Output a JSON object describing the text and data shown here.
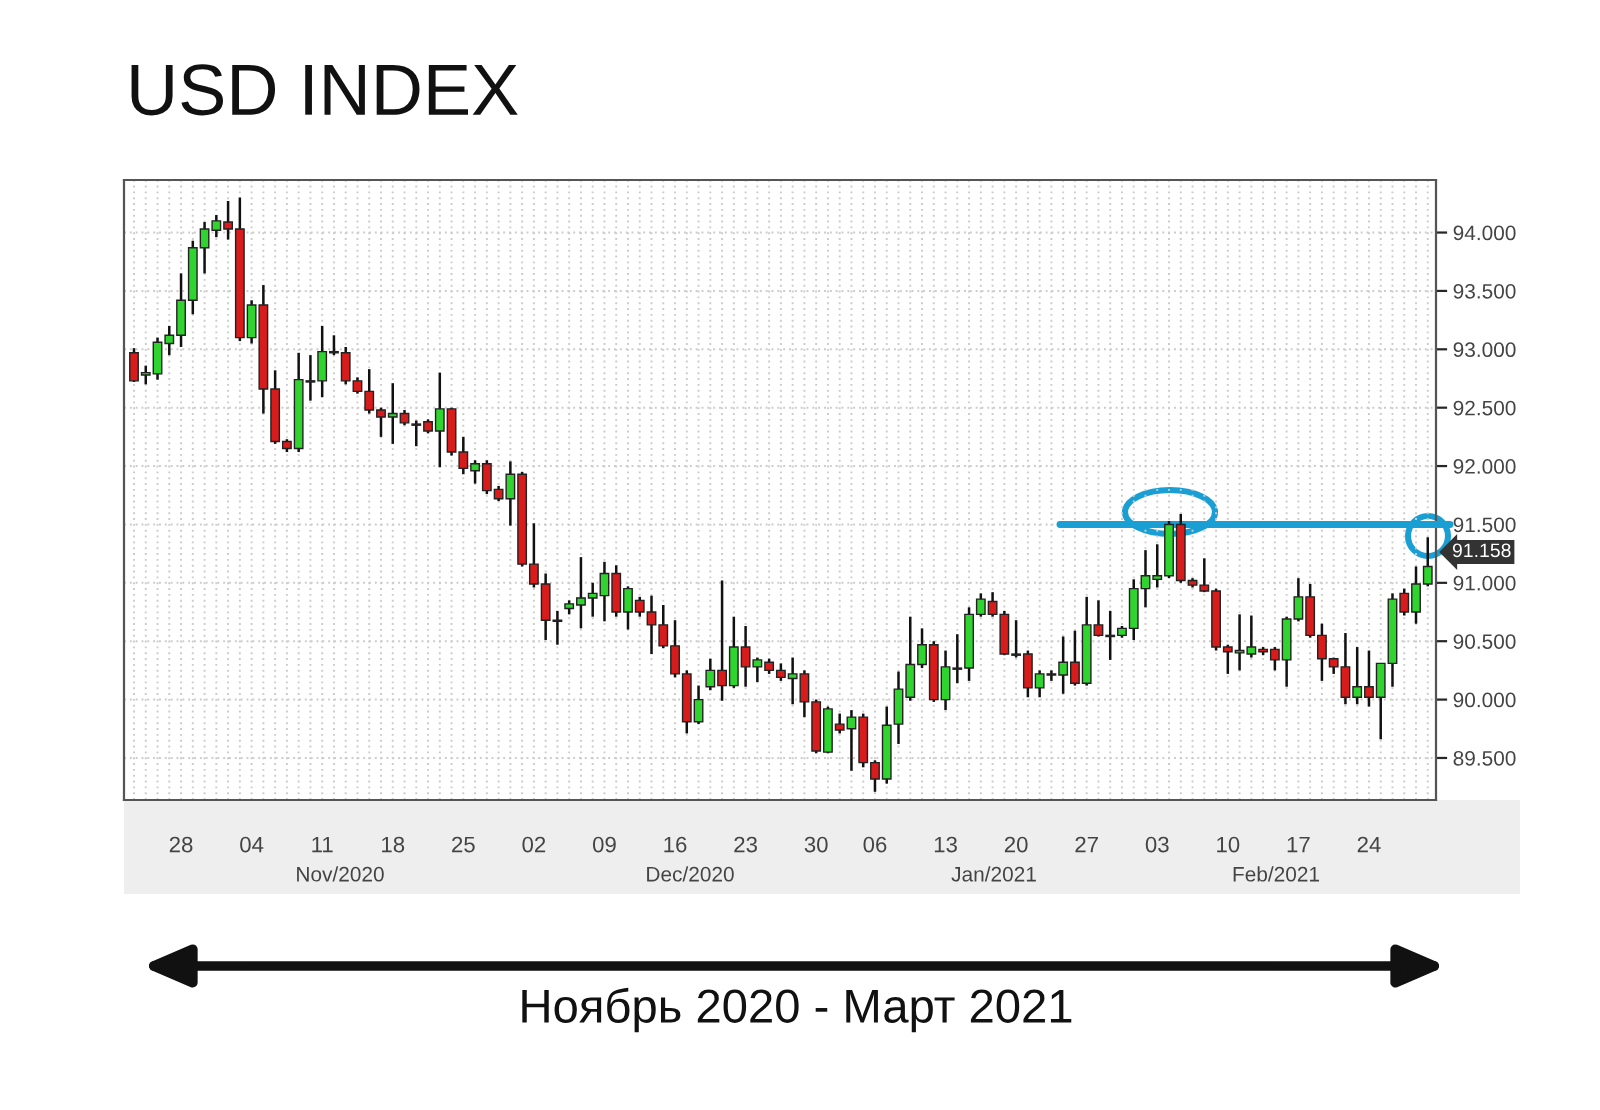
{
  "chart_data": {
    "type": "candlestick",
    "title": "USD INDEX",
    "categories": [
      null,
      null,
      null,
      null,
      "28",
      null,
      null,
      null,
      null,
      null,
      "04",
      null,
      null,
      null,
      null,
      null,
      "11",
      null,
      null,
      null,
      null,
      null,
      "18",
      null,
      null,
      null,
      null,
      null,
      "25",
      null,
      null,
      null,
      null,
      null,
      "02",
      null,
      null,
      null,
      null,
      null,
      "09",
      null,
      null,
      null,
      null,
      null,
      "16",
      null,
      null,
      null,
      null,
      null,
      "23",
      null,
      null,
      null,
      null,
      null,
      "30",
      null,
      null,
      null,
      null,
      "06",
      null,
      null,
      null,
      null,
      null,
      "13",
      null,
      null,
      null,
      null,
      null,
      "20",
      null,
      null,
      null,
      null,
      null,
      "27",
      null,
      null,
      null,
      null,
      null,
      "03",
      null,
      null,
      null,
      null,
      null,
      "10",
      null,
      null,
      null,
      null,
      null,
      "17",
      null,
      null,
      null,
      null,
      null,
      "24",
      null,
      null,
      null,
      null,
      null
    ],
    "ohlc": [
      [
        92.97,
        93.01,
        92.72,
        92.73
      ],
      [
        92.78,
        92.86,
        92.7,
        92.8
      ],
      [
        92.79,
        93.1,
        92.74,
        93.06
      ],
      [
        93.05,
        93.2,
        92.95,
        93.12
      ],
      [
        93.12,
        93.65,
        93.02,
        93.42
      ],
      [
        93.42,
        93.93,
        93.3,
        93.87
      ],
      [
        93.87,
        94.09,
        93.65,
        94.03
      ],
      [
        94.02,
        94.15,
        93.96,
        94.1
      ],
      [
        94.09,
        94.27,
        93.94,
        94.03
      ],
      [
        94.03,
        94.3,
        93.07,
        93.1
      ],
      [
        93.1,
        93.42,
        93.05,
        93.38
      ],
      [
        93.38,
        93.55,
        92.45,
        92.66
      ],
      [
        92.66,
        92.82,
        92.19,
        92.21
      ],
      [
        92.21,
        92.23,
        92.12,
        92.15
      ],
      [
        92.15,
        92.97,
        92.12,
        92.74
      ],
      [
        92.72,
        92.95,
        92.56,
        92.73
      ],
      [
        92.73,
        93.2,
        92.59,
        92.98
      ],
      [
        92.97,
        93.12,
        92.95,
        92.98
      ],
      [
        92.97,
        93.02,
        92.7,
        92.73
      ],
      [
        92.73,
        92.76,
        92.62,
        92.64
      ],
      [
        92.64,
        92.83,
        92.45,
        92.48
      ],
      [
        92.48,
        92.5,
        92.25,
        92.42
      ],
      [
        92.42,
        92.71,
        92.19,
        92.45
      ],
      [
        92.45,
        92.48,
        92.35,
        92.37
      ],
      [
        92.36,
        92.39,
        92.17,
        92.35
      ],
      [
        92.38,
        92.4,
        92.28,
        92.3
      ],
      [
        92.3,
        92.8,
        91.99,
        92.49
      ],
      [
        92.49,
        92.5,
        92.09,
        92.12
      ],
      [
        92.12,
        92.25,
        91.93,
        91.98
      ],
      [
        91.96,
        92.05,
        91.85,
        92.02
      ],
      [
        92.02,
        92.05,
        91.76,
        91.79
      ],
      [
        91.8,
        91.83,
        91.7,
        91.72
      ],
      [
        91.72,
        92.04,
        91.49,
        91.93
      ],
      [
        91.93,
        91.95,
        91.14,
        91.16
      ],
      [
        91.16,
        91.51,
        90.96,
        90.99
      ],
      [
        90.99,
        91.08,
        90.51,
        90.68
      ],
      [
        90.68,
        90.76,
        90.47,
        90.67
      ],
      [
        90.78,
        90.85,
        90.73,
        90.82
      ],
      [
        90.81,
        91.22,
        90.61,
        90.87
      ],
      [
        90.87,
        91.0,
        90.71,
        90.91
      ],
      [
        90.89,
        91.18,
        90.67,
        91.08
      ],
      [
        91.08,
        91.15,
        90.71,
        90.75
      ],
      [
        90.75,
        90.97,
        90.6,
        90.95
      ],
      [
        90.85,
        90.88,
        90.71,
        90.75
      ],
      [
        90.75,
        90.89,
        90.39,
        90.64
      ],
      [
        90.64,
        90.81,
        90.44,
        90.46
      ],
      [
        90.46,
        90.68,
        90.19,
        90.22
      ],
      [
        90.22,
        90.25,
        89.71,
        89.81
      ],
      [
        89.81,
        90.12,
        89.79,
        90.0
      ],
      [
        90.11,
        90.35,
        90.08,
        90.25
      ],
      [
        90.25,
        91.02,
        89.99,
        90.12
      ],
      [
        90.12,
        90.71,
        90.1,
        90.45
      ],
      [
        90.45,
        90.63,
        90.11,
        90.28
      ],
      [
        90.28,
        90.36,
        90.15,
        90.34
      ],
      [
        90.32,
        90.35,
        90.22,
        90.25
      ],
      [
        90.25,
        90.31,
        90.16,
        90.19
      ],
      [
        90.18,
        90.36,
        89.96,
        90.22
      ],
      [
        90.22,
        90.25,
        89.85,
        89.98
      ],
      [
        89.98,
        90.0,
        89.54,
        89.56
      ],
      [
        89.55,
        89.94,
        89.54,
        89.92
      ],
      [
        89.79,
        89.88,
        89.71,
        89.74
      ],
      [
        89.75,
        89.91,
        89.39,
        89.85
      ],
      [
        89.85,
        89.88,
        89.42,
        89.46
      ],
      [
        89.46,
        89.48,
        89.21,
        89.32
      ],
      [
        89.32,
        89.94,
        89.28,
        89.78
      ],
      [
        89.79,
        90.24,
        89.62,
        90.09
      ],
      [
        90.02,
        90.71,
        89.99,
        90.3
      ],
      [
        90.3,
        90.61,
        90.27,
        90.47
      ],
      [
        90.47,
        90.5,
        89.98,
        90.0
      ],
      [
        90.0,
        90.42,
        89.91,
        90.28
      ],
      [
        90.26,
        90.56,
        90.14,
        90.27
      ],
      [
        90.27,
        90.79,
        90.16,
        90.73
      ],
      [
        90.73,
        90.91,
        90.71,
        90.86
      ],
      [
        90.84,
        90.92,
        90.71,
        90.73
      ],
      [
        90.73,
        90.76,
        90.38,
        90.39
      ],
      [
        90.39,
        90.68,
        90.36,
        90.38
      ],
      [
        90.39,
        90.42,
        90.02,
        90.1
      ],
      [
        90.1,
        90.25,
        90.02,
        90.22
      ],
      [
        90.21,
        90.25,
        90.16,
        90.22
      ],
      [
        90.21,
        90.54,
        90.05,
        90.32
      ],
      [
        90.32,
        90.59,
        90.12,
        90.14
      ],
      [
        90.14,
        90.88,
        90.12,
        90.64
      ],
      [
        90.64,
        90.85,
        90.54,
        90.55
      ],
      [
        90.54,
        90.76,
        90.34,
        90.55
      ],
      [
        90.55,
        90.63,
        90.53,
        90.61
      ],
      [
        90.61,
        91.03,
        90.51,
        90.95
      ],
      [
        90.95,
        91.28,
        90.79,
        91.06
      ],
      [
        91.03,
        91.33,
        90.96,
        91.06
      ],
      [
        91.06,
        91.53,
        91.04,
        91.5
      ],
      [
        91.5,
        91.59,
        91.0,
        91.02
      ],
      [
        91.02,
        91.04,
        90.96,
        90.98
      ],
      [
        90.98,
        91.21,
        90.92,
        90.93
      ],
      [
        90.93,
        90.95,
        90.42,
        90.45
      ],
      [
        90.45,
        90.47,
        90.22,
        90.41
      ],
      [
        90.4,
        90.73,
        90.25,
        90.42
      ],
      [
        90.39,
        90.72,
        90.36,
        90.45
      ],
      [
        90.43,
        90.45,
        90.38,
        90.41
      ],
      [
        90.43,
        90.45,
        90.25,
        90.34
      ],
      [
        90.34,
        90.71,
        90.11,
        90.69
      ],
      [
        90.69,
        91.04,
        90.67,
        90.88
      ],
      [
        90.88,
        90.99,
        90.53,
        90.55
      ],
      [
        90.55,
        90.65,
        90.16,
        90.35
      ],
      [
        90.35,
        90.36,
        90.22,
        90.28
      ],
      [
        90.28,
        90.57,
        89.96,
        90.02
      ],
      [
        90.02,
        90.45,
        89.96,
        90.11
      ],
      [
        90.11,
        90.42,
        89.94,
        90.02
      ],
      [
        90.02,
        90.31,
        89.66,
        90.31
      ],
      [
        90.31,
        90.91,
        90.11,
        90.86
      ],
      [
        90.91,
        90.95,
        90.72,
        90.75
      ],
      [
        90.75,
        91.14,
        90.65,
        90.99
      ],
      [
        90.99,
        91.39,
        90.97,
        91.14
      ]
    ],
    "colors": [
      "#d81b1b",
      "#2fd42f",
      "#2fd42f",
      "#2fd42f",
      "#2fd42f",
      "#2fd42f",
      "#2fd42f",
      "#2fd42f",
      "#d81b1b",
      "#d81b1b",
      "#2fd42f",
      "#d81b1b",
      "#d81b1b",
      "#d81b1b",
      "#2fd42f",
      "#2fd42f",
      "#2fd42f",
      "#2fd42f",
      "#d81b1b",
      "#d81b1b",
      "#d81b1b",
      "#d81b1b",
      "#2fd42f",
      "#d81b1b",
      "#d81b1b",
      "#d81b1b",
      "#2fd42f",
      "#d81b1b",
      "#d81b1b",
      "#2fd42f",
      "#d81b1b",
      "#d81b1b",
      "#2fd42f",
      "#d81b1b",
      "#d81b1b",
      "#d81b1b",
      "#d81b1b",
      "#2fd42f",
      "#2fd42f",
      "#2fd42f",
      "#2fd42f",
      "#d81b1b",
      "#2fd42f",
      "#d81b1b",
      "#d81b1b",
      "#d81b1b",
      "#d81b1b",
      "#d81b1b",
      "#2fd42f",
      "#2fd42f",
      "#d81b1b",
      "#2fd42f",
      "#d81b1b",
      "#2fd42f",
      "#d81b1b",
      "#d81b1b",
      "#2fd42f",
      "#d81b1b",
      "#d81b1b",
      "#2fd42f",
      "#d81b1b",
      "#2fd42f",
      "#d81b1b",
      "#d81b1b",
      "#2fd42f",
      "#2fd42f",
      "#2fd42f",
      "#2fd42f",
      "#d81b1b",
      "#2fd42f",
      "#2fd42f",
      "#2fd42f",
      "#2fd42f",
      "#d81b1b",
      "#d81b1b",
      "#d81b1b",
      "#d81b1b",
      "#2fd42f",
      "#2fd42f",
      "#2fd42f",
      "#d81b1b",
      "#2fd42f",
      "#d81b1b",
      "#2fd42f",
      "#2fd42f",
      "#2fd42f",
      "#2fd42f",
      "#2fd42f",
      "#2fd42f",
      "#d81b1b",
      "#d81b1b",
      "#d81b1b",
      "#d81b1b",
      "#d81b1b",
      "#2fd42f",
      "#2fd42f",
      "#d81b1b",
      "#d81b1b",
      "#2fd42f",
      "#2fd42f",
      "#d81b1b",
      "#d81b1b",
      "#d81b1b",
      "#d81b1b",
      "#2fd42f",
      "#d81b1b",
      "#2fd42f",
      "#2fd42f",
      "#d81b1b",
      "#2fd42f",
      "#2fd42f"
    ],
    "ylim": [
      89.14,
      94.45
    ],
    "yticks": [
      {
        "value": 89.5,
        "label": "89.500"
      },
      {
        "value": 90.0,
        "label": "90.000"
      },
      {
        "value": 90.5,
        "label": "90.500"
      },
      {
        "value": 91.0,
        "label": "91.000"
      },
      {
        "value": 91.5,
        "label": "91.500"
      },
      {
        "value": 92.0,
        "label": "92.000"
      },
      {
        "value": 92.5,
        "label": "92.500"
      },
      {
        "value": 93.0,
        "label": "93.000"
      },
      {
        "value": 93.5,
        "label": "93.500"
      },
      {
        "value": 94.0,
        "label": "94.000"
      }
    ],
    "grid": true,
    "ref_lines": [
      {
        "axis": "y",
        "value": 91.5,
        "color": "#1a9fd4"
      }
    ],
    "annotations": [
      "Nov/2020",
      "Dec/2020",
      "Jan/2021",
      "Feb/2021",
      "Ноябрь 2020 - Март 2021",
      "91.158"
    ]
  }
}
